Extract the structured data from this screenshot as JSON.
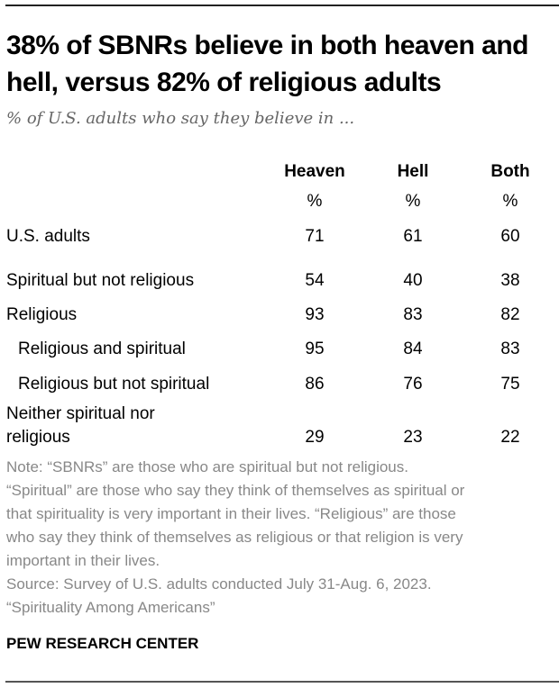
{
  "chart_data": {
    "type": "table",
    "title": "38% of SBNRs believe in both heaven and hell, versus 82% of religious adults",
    "subtitle": "% of U.S. adults who say they believe in ...",
    "columns": [
      "Heaven",
      "Hell",
      "Both"
    ],
    "unit_row": [
      "%",
      "%",
      "%"
    ],
    "rows": [
      {
        "label": "U.S. adults",
        "indent": false,
        "values": [
          71,
          61,
          60
        ]
      },
      {
        "label": "Spiritual but not religious",
        "indent": false,
        "values": [
          54,
          40,
          38
        ]
      },
      {
        "label": "Religious",
        "indent": false,
        "values": [
          93,
          83,
          82
        ]
      },
      {
        "label": "Religious and spiritual",
        "indent": true,
        "values": [
          95,
          84,
          83
        ]
      },
      {
        "label": "Religious but not spiritual",
        "indent": true,
        "values": [
          86,
          76,
          75
        ]
      },
      {
        "label": "Neither spiritual nor religious",
        "label_lines": [
          "Neither spiritual nor",
          "religious"
        ],
        "indent": false,
        "values": [
          29,
          23,
          22
        ]
      }
    ]
  },
  "notes": [
    "Note: “SBNRs” are those who are spiritual but not religious.",
    "“Spiritual” are those who say they think of themselves as spiritual or",
    "that spirituality is very important in their lives. “Religious” are those",
    "who say they think of themselves as religious or that religion is very",
    "important in their lives.",
    "Source: Survey of U.S. adults conducted July 31-Aug. 6, 2023.",
    "“Spirituality Among Americans”"
  ],
  "brand": "PEW RESEARCH CENTER"
}
